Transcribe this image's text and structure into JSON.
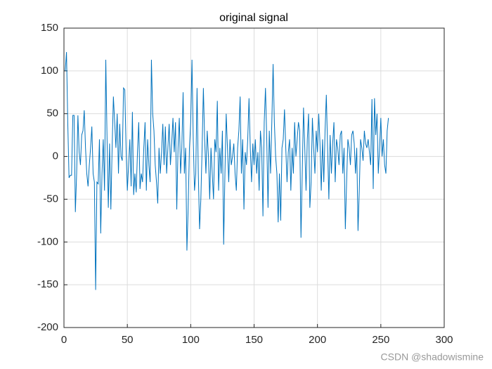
{
  "chart_data": {
    "type": "line",
    "title": "original signal",
    "x": [
      1,
      2,
      3,
      4,
      5,
      6,
      7,
      8,
      9,
      10,
      11,
      12,
      13,
      14,
      15,
      16,
      17,
      18,
      19,
      20,
      21,
      22,
      23,
      24,
      25,
      26,
      27,
      28,
      29,
      30,
      31,
      32,
      33,
      34,
      35,
      36,
      37,
      38,
      39,
      40,
      41,
      42,
      43,
      44,
      45,
      46,
      47,
      48,
      49,
      50,
      51,
      52,
      53,
      54,
      55,
      56,
      57,
      58,
      59,
      60,
      61,
      62,
      63,
      64,
      65,
      66,
      67,
      68,
      69,
      70,
      71,
      72,
      73,
      74,
      75,
      76,
      77,
      78,
      79,
      80,
      81,
      82,
      83,
      84,
      85,
      86,
      87,
      88,
      89,
      90,
      91,
      92,
      93,
      94,
      95,
      96,
      97,
      98,
      99,
      100,
      101,
      102,
      103,
      104,
      105,
      106,
      107,
      108,
      109,
      110,
      111,
      112,
      113,
      114,
      115,
      116,
      117,
      118,
      119,
      120,
      121,
      122,
      123,
      124,
      125,
      126,
      127,
      128,
      129,
      130,
      131,
      132,
      133,
      134,
      135,
      136,
      137,
      138,
      139,
      140,
      141,
      142,
      143,
      144,
      145,
      146,
      147,
      148,
      149,
      150,
      151,
      152,
      153,
      154,
      155,
      156,
      157,
      158,
      159,
      160,
      161,
      162,
      163,
      164,
      165,
      166,
      167,
      168,
      169,
      170,
      171,
      172,
      173,
      174,
      175,
      176,
      177,
      178,
      179,
      180,
      181,
      182,
      183,
      184,
      185,
      186,
      187,
      188,
      189,
      190,
      191,
      192,
      193,
      194,
      195,
      196,
      197,
      198,
      199,
      200,
      201,
      202,
      203,
      204,
      205,
      206,
      207,
      208,
      209,
      210,
      211,
      212,
      213,
      214,
      215,
      216,
      217,
      218,
      219,
      220,
      221,
      222,
      223,
      224,
      225,
      226,
      227,
      228,
      229,
      230,
      231,
      232,
      233,
      234,
      235,
      236,
      237,
      238,
      239,
      240,
      241,
      242,
      243,
      244,
      245,
      246,
      247,
      248,
      249,
      250,
      251,
      252,
      253,
      254,
      255,
      256
    ],
    "series": [
      {
        "color": "#0072bd",
        "values": [
          100,
          122,
          40,
          -25,
          -22,
          -22,
          48,
          48,
          -65,
          -20,
          48,
          5,
          -10,
          25,
          30,
          54,
          10,
          -20,
          -35,
          -10,
          10,
          35,
          -20,
          -30,
          -156,
          -30,
          -32,
          20,
          -90,
          -20,
          20,
          -40,
          113,
          20,
          -60,
          15,
          -62,
          10,
          70,
          40,
          10,
          50,
          -20,
          38,
          0,
          -5,
          80,
          78,
          10,
          -40,
          -10,
          20,
          -35,
          52,
          -45,
          -20,
          -42,
          5,
          40,
          -38,
          -20,
          -30,
          10,
          40,
          -40,
          20,
          -10,
          -30,
          113,
          50,
          30,
          -10,
          -30,
          -55,
          10,
          -20,
          5,
          38,
          -10,
          35,
          -20,
          10,
          38,
          -10,
          15,
          45,
          5,
          40,
          -62,
          10,
          45,
          -20,
          10,
          75,
          -20,
          10,
          -110,
          -60,
          10,
          40,
          113,
          20,
          -40,
          -20,
          80,
          -20,
          -85,
          -50,
          10,
          80,
          20,
          -20,
          30,
          0,
          -50,
          10,
          -20,
          -50,
          20,
          5,
          65,
          -40,
          10,
          -20,
          30,
          -103,
          -20,
          50,
          10,
          -30,
          20,
          -10,
          0,
          15,
          -20,
          -40,
          10,
          30,
          70,
          -20,
          20,
          -62,
          5,
          -10,
          20,
          68,
          10,
          -30,
          15,
          -10,
          20,
          -20,
          5,
          -40,
          30,
          10,
          -70,
          40,
          80,
          20,
          -60,
          30,
          -20,
          40,
          108,
          40,
          0,
          -20,
          -77,
          -20,
          -75,
          10,
          20,
          55,
          10,
          -30,
          5,
          20,
          -40,
          10,
          -20,
          40,
          0,
          20,
          40,
          30,
          -95,
          -20,
          57,
          10,
          -40,
          20,
          50,
          -60,
          -30,
          45,
          10,
          -20,
          30,
          5,
          50,
          15,
          -40,
          20,
          -30,
          30,
          72,
          10,
          -50,
          25,
          -20,
          15,
          40,
          -30,
          20,
          10,
          -10,
          25,
          30,
          -20,
          10,
          -85,
          -30,
          20,
          10,
          -10,
          25,
          30,
          15,
          -20,
          10,
          -87,
          -40,
          20,
          10,
          -5,
          30,
          15,
          10,
          20,
          5,
          -10,
          67,
          -38,
          68,
          25,
          50,
          -20,
          10,
          45,
          0,
          20,
          -10,
          -20,
          30,
          45
        ]
      }
    ],
    "xlim": [
      0,
      300
    ],
    "xticks": [
      0,
      50,
      100,
      150,
      200,
      250,
      300
    ],
    "ylim": [
      -200,
      150
    ],
    "yticks": [
      -200,
      -150,
      -100,
      -50,
      0,
      50,
      100,
      150
    ],
    "grid": true
  },
  "watermark": "CSDN @shadowismine"
}
